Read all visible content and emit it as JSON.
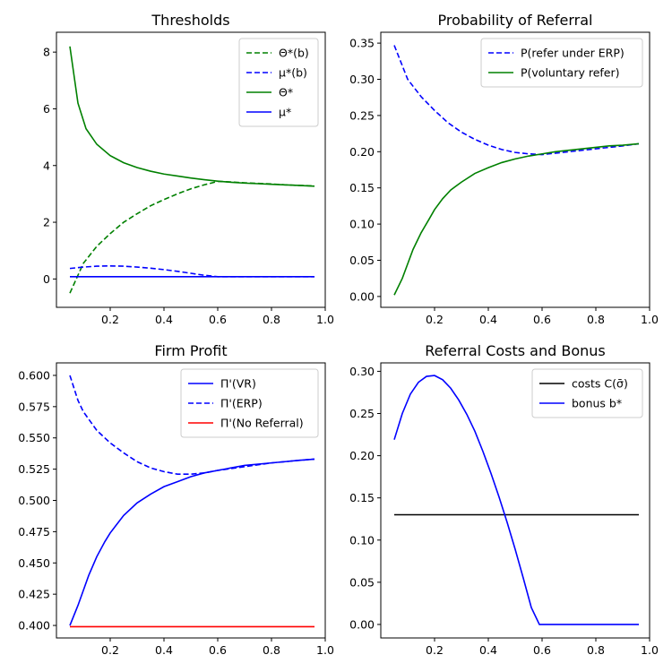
{
  "chart_data": [
    {
      "type": "line",
      "title": "Thresholds",
      "xlabel": "",
      "ylabel": "",
      "xlim": [
        -0.0,
        1.0
      ],
      "ylim": [
        -1.0,
        8.7
      ],
      "xticks": [
        0.2,
        0.4,
        0.6,
        0.8,
        1.0
      ],
      "xtick_labels": [
        "0.2",
        "0.4",
        "0.6",
        "0.8",
        "1.0"
      ],
      "yticks": [
        0,
        2,
        4,
        6,
        8
      ],
      "ytick_labels": [
        "0",
        "2",
        "4",
        "6",
        "8"
      ],
      "grid": false,
      "legend_position": "top-right",
      "series": [
        {
          "name": "Θ*(b)",
          "color": "#008000",
          "dash": true,
          "x": [
            0.05,
            0.1,
            0.15,
            0.2,
            0.25,
            0.3,
            0.35,
            0.4,
            0.45,
            0.5,
            0.55,
            0.6,
            0.65,
            0.7,
            0.75,
            0.8,
            0.85,
            0.9,
            0.96
          ],
          "y": [
            -0.5,
            0.55,
            1.15,
            1.6,
            2.0,
            2.3,
            2.58,
            2.8,
            3.0,
            3.18,
            3.32,
            3.44,
            3.42,
            3.39,
            3.37,
            3.35,
            3.32,
            3.3,
            3.28
          ]
        },
        {
          "name": "μ*(b)",
          "color": "#0000ff",
          "dash": true,
          "x": [
            0.05,
            0.1,
            0.15,
            0.2,
            0.25,
            0.3,
            0.35,
            0.4,
            0.45,
            0.5,
            0.55,
            0.6,
            0.7,
            0.8,
            0.9,
            0.96
          ],
          "y": [
            0.37,
            0.42,
            0.45,
            0.46,
            0.45,
            0.42,
            0.38,
            0.33,
            0.27,
            0.2,
            0.13,
            0.08,
            0.08,
            0.08,
            0.08,
            0.08
          ]
        },
        {
          "name": "Θ*",
          "color": "#008000",
          "dash": false,
          "x": [
            0.05,
            0.08,
            0.11,
            0.15,
            0.2,
            0.25,
            0.3,
            0.35,
            0.4,
            0.45,
            0.5,
            0.55,
            0.6,
            0.65,
            0.7,
            0.75,
            0.8,
            0.85,
            0.9,
            0.96
          ],
          "y": [
            8.2,
            6.2,
            5.3,
            4.75,
            4.35,
            4.1,
            3.93,
            3.8,
            3.7,
            3.63,
            3.56,
            3.5,
            3.45,
            3.41,
            3.38,
            3.36,
            3.34,
            3.32,
            3.3,
            3.27
          ]
        },
        {
          "name": "μ*",
          "color": "#0000ff",
          "dash": false,
          "x": [
            0.05,
            0.2,
            0.4,
            0.6,
            0.8,
            0.96
          ],
          "y": [
            0.08,
            0.08,
            0.08,
            0.08,
            0.08,
            0.08
          ]
        }
      ]
    },
    {
      "type": "line",
      "title": "Probability of Referral",
      "xlabel": "",
      "ylabel": "",
      "xlim": [
        0.0,
        1.0
      ],
      "ylim": [
        -0.015,
        0.365
      ],
      "xticks": [
        0.2,
        0.4,
        0.6,
        0.8,
        1.0
      ],
      "xtick_labels": [
        "0.2",
        "0.4",
        "0.6",
        "0.8",
        "1.0"
      ],
      "yticks": [
        0.0,
        0.05,
        0.1,
        0.15,
        0.2,
        0.25,
        0.3,
        0.35
      ],
      "ytick_labels": [
        "0.00",
        "0.05",
        "0.10",
        "0.15",
        "0.20",
        "0.25",
        "0.30",
        "0.35"
      ],
      "grid": false,
      "legend_position": "top-right",
      "series": [
        {
          "name": "P(refer under ERP)",
          "color": "#0000ff",
          "dash": true,
          "x": [
            0.05,
            0.1,
            0.15,
            0.2,
            0.25,
            0.3,
            0.35,
            0.4,
            0.45,
            0.5,
            0.55,
            0.6,
            0.7,
            0.8,
            0.9,
            0.96
          ],
          "y": [
            0.347,
            0.3,
            0.276,
            0.257,
            0.24,
            0.227,
            0.217,
            0.209,
            0.203,
            0.199,
            0.197,
            0.196,
            0.2,
            0.204,
            0.208,
            0.211
          ]
        },
        {
          "name": "P(voluntary refer)",
          "color": "#008000",
          "dash": false,
          "x": [
            0.05,
            0.08,
            0.1,
            0.12,
            0.15,
            0.18,
            0.2,
            0.23,
            0.26,
            0.3,
            0.35,
            0.4,
            0.45,
            0.5,
            0.55,
            0.6,
            0.65,
            0.7,
            0.75,
            0.8,
            0.85,
            0.9,
            0.96
          ],
          "y": [
            0.002,
            0.025,
            0.045,
            0.065,
            0.088,
            0.107,
            0.12,
            0.135,
            0.147,
            0.158,
            0.17,
            0.178,
            0.185,
            0.19,
            0.194,
            0.197,
            0.2,
            0.202,
            0.204,
            0.206,
            0.208,
            0.209,
            0.211
          ]
        }
      ]
    },
    {
      "type": "line",
      "title": "Firm Profit",
      "xlabel": "",
      "ylabel": "",
      "xlim": [
        0.0,
        1.0
      ],
      "ylim": [
        0.39,
        0.61
      ],
      "xticks": [
        0.2,
        0.4,
        0.6,
        0.8,
        1.0
      ],
      "xtick_labels": [
        "0.2",
        "0.4",
        "0.6",
        "0.8",
        "1.0"
      ],
      "yticks": [
        0.4,
        0.425,
        0.45,
        0.475,
        0.5,
        0.525,
        0.55,
        0.575,
        0.6
      ],
      "ytick_labels": [
        "0.400",
        "0.425",
        "0.450",
        "0.475",
        "0.500",
        "0.525",
        "0.550",
        "0.575",
        "0.600"
      ],
      "grid": false,
      "legend_position": "top-right",
      "series": [
        {
          "name": "Π'(VR)",
          "color": "#0000ff",
          "dash": false,
          "x": [
            0.05,
            0.08,
            0.1,
            0.12,
            0.15,
            0.18,
            0.2,
            0.25,
            0.3,
            0.35,
            0.4,
            0.45,
            0.5,
            0.55,
            0.6,
            0.65,
            0.7,
            0.75,
            0.8,
            0.85,
            0.9,
            0.96
          ],
          "y": [
            0.4,
            0.416,
            0.428,
            0.44,
            0.455,
            0.467,
            0.474,
            0.488,
            0.498,
            0.505,
            0.511,
            0.515,
            0.519,
            0.522,
            0.524,
            0.526,
            0.528,
            0.529,
            0.53,
            0.531,
            0.532,
            0.533
          ]
        },
        {
          "name": "Π'(ERP)",
          "color": "#0000ff",
          "dash": true,
          "x": [
            0.05,
            0.08,
            0.1,
            0.15,
            0.2,
            0.25,
            0.3,
            0.35,
            0.4,
            0.45,
            0.5,
            0.55,
            0.6,
            0.7,
            0.8,
            0.9,
            0.96
          ],
          "y": [
            0.6,
            0.58,
            0.571,
            0.556,
            0.546,
            0.538,
            0.531,
            0.526,
            0.523,
            0.521,
            0.521,
            0.522,
            0.524,
            0.527,
            0.53,
            0.532,
            0.533
          ]
        },
        {
          "name": "Π'(No Referral)",
          "color": "#ff0000",
          "dash": false,
          "x": [
            0.05,
            0.96
          ],
          "y": [
            0.399,
            0.399
          ]
        }
      ]
    },
    {
      "type": "line",
      "title": "Referral Costs and Bonus",
      "xlabel": "",
      "ylabel": "",
      "xlim": [
        0.0,
        1.0
      ],
      "ylim": [
        -0.016,
        0.31
      ],
      "xticks": [
        0.2,
        0.4,
        0.6,
        0.8,
        1.0
      ],
      "xtick_labels": [
        "0.2",
        "0.4",
        "0.6",
        "0.8",
        "1.0"
      ],
      "yticks": [
        0.0,
        0.05,
        0.1,
        0.15,
        0.2,
        0.25,
        0.3
      ],
      "ytick_labels": [
        "0.00",
        "0.05",
        "0.10",
        "0.15",
        "0.20",
        "0.25",
        "0.30"
      ],
      "grid": false,
      "legend_position": "top-right",
      "series": [
        {
          "name": "costs C(σ̄)",
          "color": "#000000",
          "dash": false,
          "x": [
            0.05,
            0.96
          ],
          "y": [
            0.13,
            0.13
          ]
        },
        {
          "name": "bonus b*",
          "color": "#0000ff",
          "dash": false,
          "x": [
            0.05,
            0.08,
            0.11,
            0.14,
            0.17,
            0.2,
            0.23,
            0.26,
            0.29,
            0.32,
            0.35,
            0.38,
            0.41,
            0.44,
            0.47,
            0.5,
            0.53,
            0.56,
            0.59,
            0.61,
            0.65,
            0.7,
            0.8,
            0.9,
            0.96
          ],
          "y": [
            0.219,
            0.25,
            0.273,
            0.287,
            0.294,
            0.295,
            0.29,
            0.28,
            0.266,
            0.249,
            0.229,
            0.205,
            0.179,
            0.151,
            0.121,
            0.089,
            0.055,
            0.02,
            0.0,
            0.0,
            0.0,
            0.0,
            0.0,
            0.0,
            0.0
          ]
        }
      ]
    }
  ]
}
